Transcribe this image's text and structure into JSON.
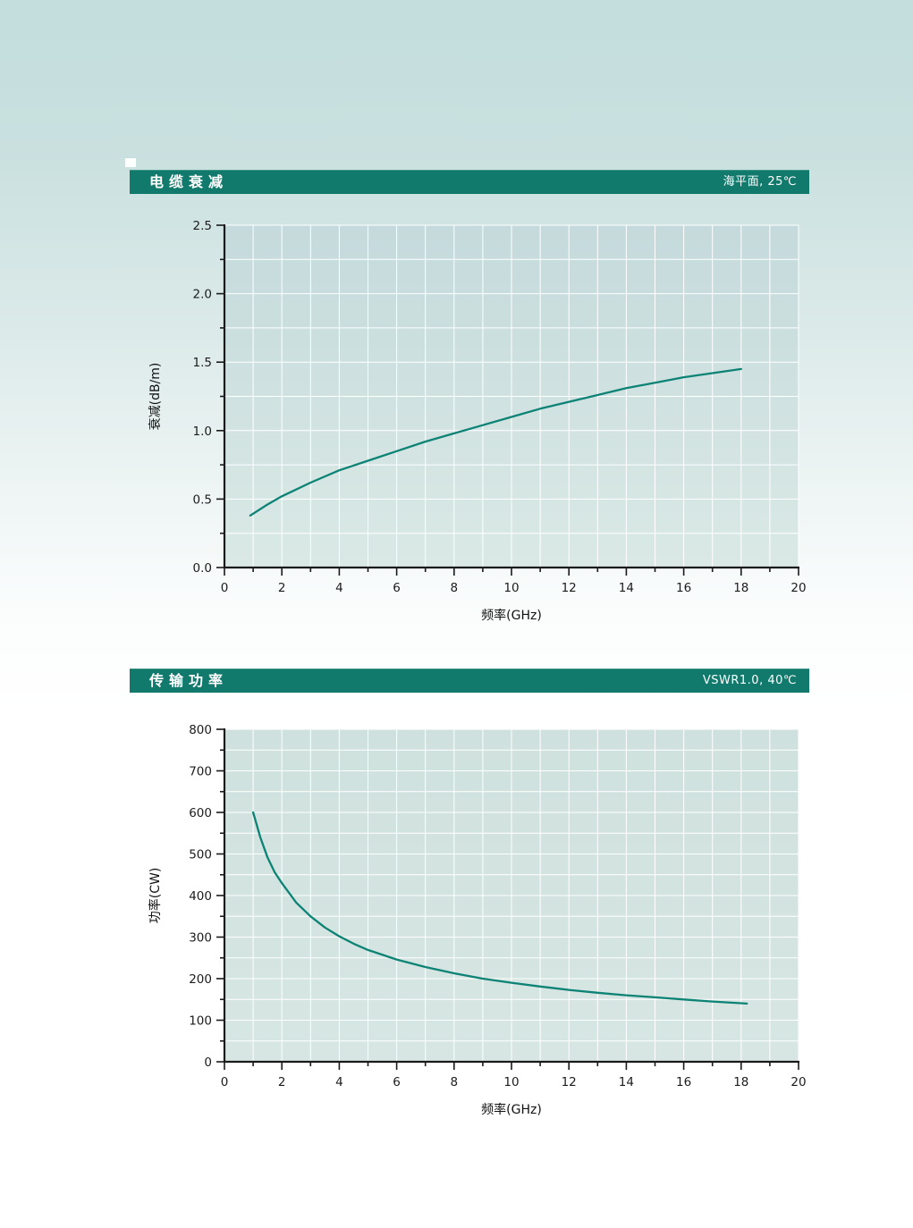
{
  "theme": {
    "page_bg_top": "#c3dedd",
    "page_bg_bottom": "#ffffff",
    "banner_bg": "#117a6d",
    "banner_text": "#ffffff",
    "axis_color": "#1a1a1a",
    "grid_color": "#ffffff",
    "tick_label_color": "#1c1c1c",
    "curve_color": "#0d8375"
  },
  "sections": [
    {
      "title": "电缆衰减",
      "condition": "海平面, 25℃"
    },
    {
      "title": "传输功率",
      "condition": "VSWR1.0, 40℃"
    }
  ],
  "chart_data": [
    {
      "type": "line",
      "title": "电缆衰减",
      "condition": "海平面, 25℃",
      "xlabel": "频率(GHz)",
      "ylabel": "衰减(dB/m)",
      "xlim": [
        0,
        20
      ],
      "ylim": [
        0,
        2.5
      ],
      "x_major_ticks": [
        0,
        2,
        4,
        6,
        8,
        10,
        12,
        14,
        16,
        18,
        20
      ],
      "x_minor_step": 1,
      "y_major_ticks": [
        "0.0",
        "0.5",
        "1.0",
        "1.5",
        "2.0",
        "2.5"
      ],
      "y_minor_step": 0.25,
      "grid_x_step": 1,
      "grid_y_step": 0.25,
      "grid": "on",
      "legend": "none",
      "line_color": "#0d8375",
      "plot_bg_top": "#c5dadc",
      "plot_bg_bottom": "#dae9e5",
      "series": [
        {
          "name": "attenuation",
          "x": [
            0.9,
            1.5,
            2,
            3,
            4,
            5,
            6,
            7,
            8,
            9,
            10,
            11,
            12,
            13,
            14,
            15,
            16,
            17,
            18
          ],
          "y": [
            0.38,
            0.46,
            0.52,
            0.62,
            0.71,
            0.78,
            0.85,
            0.92,
            0.98,
            1.04,
            1.1,
            1.16,
            1.21,
            1.26,
            1.31,
            1.35,
            1.39,
            1.42,
            1.45
          ]
        }
      ]
    },
    {
      "type": "line",
      "title": "传输功率",
      "condition": "VSWR1.0, 40℃",
      "xlabel": "频率(GHz)",
      "ylabel": "功率(CW)",
      "xlim": [
        0,
        20
      ],
      "ylim": [
        0,
        800
      ],
      "x_major_ticks": [
        0,
        2,
        4,
        6,
        8,
        10,
        12,
        14,
        16,
        18,
        20
      ],
      "x_minor_step": 1,
      "y_major_ticks": [
        "0",
        "100",
        "200",
        "300",
        "400",
        "500",
        "600",
        "700",
        "800"
      ],
      "y_minor_step": 50,
      "grid_x_step": 1,
      "grid_y_step": 50,
      "grid": "on",
      "legend": "none",
      "line_color": "#0d8375",
      "plot_bg_top": "#cfe1de",
      "plot_bg_bottom": "#d7e6e2",
      "series": [
        {
          "name": "power",
          "x": [
            1,
            1.25,
            1.5,
            1.75,
            2,
            2.5,
            3,
            3.5,
            4,
            4.5,
            5,
            6,
            7,
            8,
            9,
            10,
            11,
            12,
            13,
            14,
            15,
            16,
            17,
            18.2
          ],
          "y": [
            600,
            540,
            492,
            456,
            430,
            383,
            350,
            323,
            302,
            284,
            269,
            246,
            228,
            213,
            200,
            190,
            181,
            173,
            166,
            160,
            155,
            150,
            145,
            140
          ]
        }
      ]
    }
  ]
}
